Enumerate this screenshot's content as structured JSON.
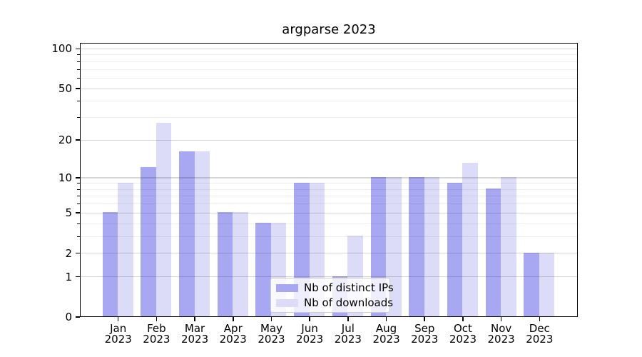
{
  "chart_data": {
    "type": "bar",
    "title": "argparse 2023",
    "categories": [
      "Jan\n2023",
      "Feb\n2023",
      "Mar\n2023",
      "Apr\n2023",
      "May\n2023",
      "Jun\n2023",
      "Jul\n2023",
      "Aug\n2023",
      "Sep\n2023",
      "Oct\n2023",
      "Nov\n2023",
      "Dec\n2023"
    ],
    "series": [
      {
        "name": "Nb of distinct IPs",
        "color": "#a8a8f2",
        "values": [
          5,
          12,
          16,
          5,
          4,
          9,
          1,
          10,
          10,
          9,
          8,
          2
        ]
      },
      {
        "name": "Nb of downloads",
        "color": "#dcdcf8",
        "values": [
          9,
          27,
          16,
          5,
          4,
          9,
          3,
          10,
          10,
          13,
          10,
          2
        ]
      }
    ],
    "ylim": [
      0,
      111
    ],
    "yscale": "log1p",
    "yticks_major": [
      0,
      1,
      2,
      5,
      10,
      20,
      50,
      100
    ],
    "yticks_minor": [
      3,
      4,
      6,
      7,
      8,
      9,
      30,
      40,
      60,
      70,
      80,
      90
    ],
    "grid": "major and minor horizontal, drawn above bars",
    "legend_position": "lower center"
  },
  "colors": {
    "background": "#ffffff",
    "spine": "#000000",
    "grid_major": "rgba(0,0,0,0.16)",
    "grid_minor": "rgba(0,0,0,0.065)",
    "legend_border": "#cccccc",
    "legend_background": "rgba(255,255,255,0.8)"
  }
}
